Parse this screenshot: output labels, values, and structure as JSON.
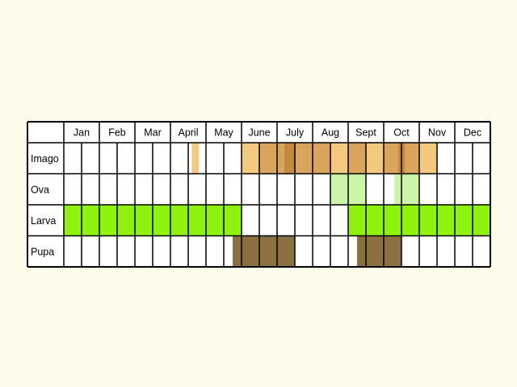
{
  "chart_data": {
    "type": "table",
    "title": "",
    "months": [
      "Jan",
      "Feb",
      "Mar",
      "April",
      "May",
      "June",
      "July",
      "Aug",
      "Sept",
      "Oct",
      "Nov",
      "Dec"
    ],
    "periods_per_month": 2,
    "colors": {
      "background": "#fdfbe9",
      "cell": "#ffffff",
      "grid": "#000000",
      "imago_light": "#f3c87f",
      "imago_mid": "#d9a45c",
      "imago_dark": "#c48a3c",
      "ova": "#ccf5a9",
      "larva": "#8ef20d",
      "pupa": "#8b7142"
    },
    "stages": [
      {
        "label": "Imago",
        "segments": [
          {
            "start": 4.6,
            "end": 4.8,
            "color": "imago_light"
          },
          {
            "start": 6.0,
            "end": 6.5,
            "color": "imago_light"
          },
          {
            "start": 6.5,
            "end": 7.0,
            "color": "imago_mid"
          },
          {
            "start": 7.0,
            "end": 7.2,
            "color": "imago_mid"
          },
          {
            "start": 7.2,
            "end": 7.5,
            "color": "imago_dark"
          },
          {
            "start": 7.5,
            "end": 8.5,
            "color": "imago_mid"
          },
          {
            "start": 8.5,
            "end": 9.0,
            "color": "imago_light"
          },
          {
            "start": 9.0,
            "end": 9.5,
            "color": "imago_mid"
          },
          {
            "start": 9.5,
            "end": 10.0,
            "color": "imago_light"
          },
          {
            "start": 10.0,
            "end": 10.4,
            "color": "imago_mid"
          },
          {
            "start": 10.4,
            "end": 10.6,
            "color": "imago_dark"
          },
          {
            "start": 10.6,
            "end": 11.0,
            "color": "imago_mid"
          },
          {
            "start": 11.0,
            "end": 11.5,
            "color": "imago_light"
          }
        ]
      },
      {
        "label": "Ova",
        "segments": [
          {
            "start": 8.5,
            "end": 9.5,
            "color": "ova"
          },
          {
            "start": 10.3,
            "end": 11.0,
            "color": "ova"
          }
        ]
      },
      {
        "label": "Larva",
        "segments": [
          {
            "start": 1.0,
            "end": 6.0,
            "color": "larva"
          },
          {
            "start": 9.0,
            "end": 13.0,
            "color": "larva"
          }
        ]
      },
      {
        "label": "Pupa",
        "segments": [
          {
            "start": 5.75,
            "end": 7.5,
            "color": "pupa"
          },
          {
            "start": 9.25,
            "end": 10.5,
            "color": "pupa"
          }
        ]
      }
    ]
  }
}
